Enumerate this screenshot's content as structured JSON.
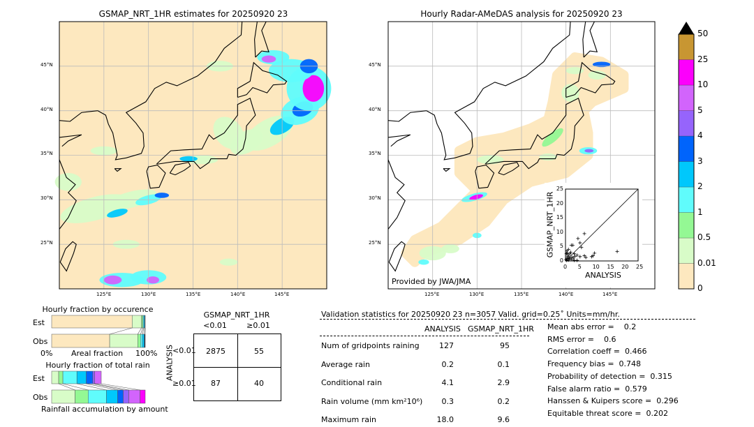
{
  "left_map": {
    "title": "GSMAP_NRT_1HR estimates for 20250920 23",
    "lon_ticks": [
      "125°E",
      "130°E",
      "135°E",
      "140°E",
      "145°E"
    ],
    "lat_ticks": [
      "45°N",
      "40°N",
      "35°N",
      "30°N",
      "25°N"
    ]
  },
  "right_map": {
    "title": "Hourly Radar-AMeDAS analysis for 20250920 23",
    "lon_ticks": [
      "125°E",
      "130°E",
      "135°E",
      "140°E",
      "145°E"
    ],
    "lat_ticks": [
      "45°N",
      "40°N",
      "35°N",
      "30°N",
      "25°N"
    ],
    "credit": "Provided by JWA/JMA"
  },
  "colorbar": {
    "labels": [
      "0",
      "0.01",
      "0.5",
      "1",
      "2",
      "3",
      "4",
      "5",
      "10",
      "25",
      "50"
    ],
    "colors": [
      "#fde8bf",
      "#d8fcc8",
      "#94f894",
      "#60fcfc",
      "#00c8fc",
      "#0064fc",
      "#9664fc",
      "#d264fc",
      "#fc00fc",
      "#c89632"
    ],
    "over_color": "#000000"
  },
  "occurrence": {
    "title": "Hourly fraction by occurence",
    "rows": [
      "Est",
      "Obs"
    ],
    "xlabel": "Areal fraction",
    "x_left": "0%",
    "x_right": "100%",
    "est_pct": [
      86,
      10,
      1.5,
      1,
      1,
      0.5
    ],
    "obs_pct": [
      62,
      30,
      3,
      2,
      2,
      1
    ]
  },
  "total_rain": {
    "title": "Hourly fraction of total rain",
    "rows": [
      "Est",
      "Obs"
    ],
    "xlabel": "Rainfall accumulation by amount",
    "est_pct": [
      7.5,
      4.5,
      15,
      10,
      7,
      2,
      7
    ],
    "obs_pct": [
      25,
      14,
      19.5,
      12,
      6,
      6,
      12,
      5.5
    ]
  },
  "contingency": {
    "title": "GSMAP_NRT_1HR",
    "col_headers": [
      "<0.01",
      "≥0.01"
    ],
    "row_label": "ANALYSIS",
    "row_headers": [
      "<0.01",
      "≥0.01"
    ],
    "cells": [
      [
        "2875",
        "55"
      ],
      [
        "87",
        "40"
      ]
    ]
  },
  "validation": {
    "header": "Validation statistics for 20250920 23  n=3057 Valid. grid=0.25˚ Units=mm/hr.",
    "col_headers": [
      "ANALYSIS",
      "GSMAP_NRT_1HR"
    ],
    "rows": [
      {
        "label": "Num of gridpoints raining",
        "analysis": "127",
        "gsmap": "95"
      },
      {
        "label": "Average rain",
        "analysis": "0.2",
        "gsmap": "0.1"
      },
      {
        "label": "Conditional rain",
        "analysis": "4.1",
        "gsmap": "2.9"
      },
      {
        "label": "Rain volume (mm km²10⁶)",
        "analysis": "0.3",
        "gsmap": "0.2"
      },
      {
        "label": "Maximum rain",
        "analysis": "18.0",
        "gsmap": "9.6"
      }
    ],
    "scores": [
      "Mean abs error =    0.2",
      "RMS error =    0.6",
      "Correlation coeff =  0.466",
      "Frequency bias =  0.748",
      "Probability of detection =  0.315",
      "False alarm ratio =  0.579",
      "Hanssen & Kuipers score =  0.296",
      "Equitable threat score =  0.202"
    ]
  },
  "chart_data": {
    "type": "scatter",
    "xlabel": "ANALYSIS",
    "ylabel": "GSMAP_NRT_1HR",
    "xlim": [
      0,
      25
    ],
    "ylim": [
      0,
      25
    ],
    "x_ticks": [
      "0",
      "5",
      "10",
      "15",
      "20",
      "25"
    ],
    "y_ticks": [
      "0",
      "5",
      "10",
      "15",
      "20",
      "25"
    ],
    "points": [
      [
        17.8,
        3.3
      ],
      [
        6.5,
        9.5
      ],
      [
        4.3,
        7.8
      ],
      [
        5,
        6.3
      ],
      [
        5.5,
        4.7
      ],
      [
        2,
        5.5
      ],
      [
        2.5,
        5.5
      ],
      [
        10,
        2.7
      ],
      [
        9.5,
        1.8
      ],
      [
        9,
        1.5
      ],
      [
        7,
        1.2
      ],
      [
        6.5,
        1.8
      ],
      [
        5,
        1.5
      ],
      [
        4,
        2
      ],
      [
        3,
        2.5
      ],
      [
        3.2,
        1.6
      ],
      [
        1,
        4
      ],
      [
        0.5,
        3.5
      ],
      [
        1,
        2
      ],
      [
        0.5,
        1
      ],
      [
        0.2,
        0.5
      ],
      [
        1.5,
        1
      ],
      [
        2,
        0.5
      ],
      [
        3,
        0.2
      ],
      [
        1,
        0.3
      ],
      [
        0.3,
        2.5
      ],
      [
        4,
        0.2
      ],
      [
        0.8,
        1.5
      ],
      [
        1.5,
        2.5
      ],
      [
        2.2,
        1.3
      ],
      [
        0.4,
        0.2
      ],
      [
        1.2,
        0.8
      ],
      [
        0.6,
        2.8
      ],
      [
        2.7,
        1
      ],
      [
        1.8,
        3
      ]
    ]
  }
}
